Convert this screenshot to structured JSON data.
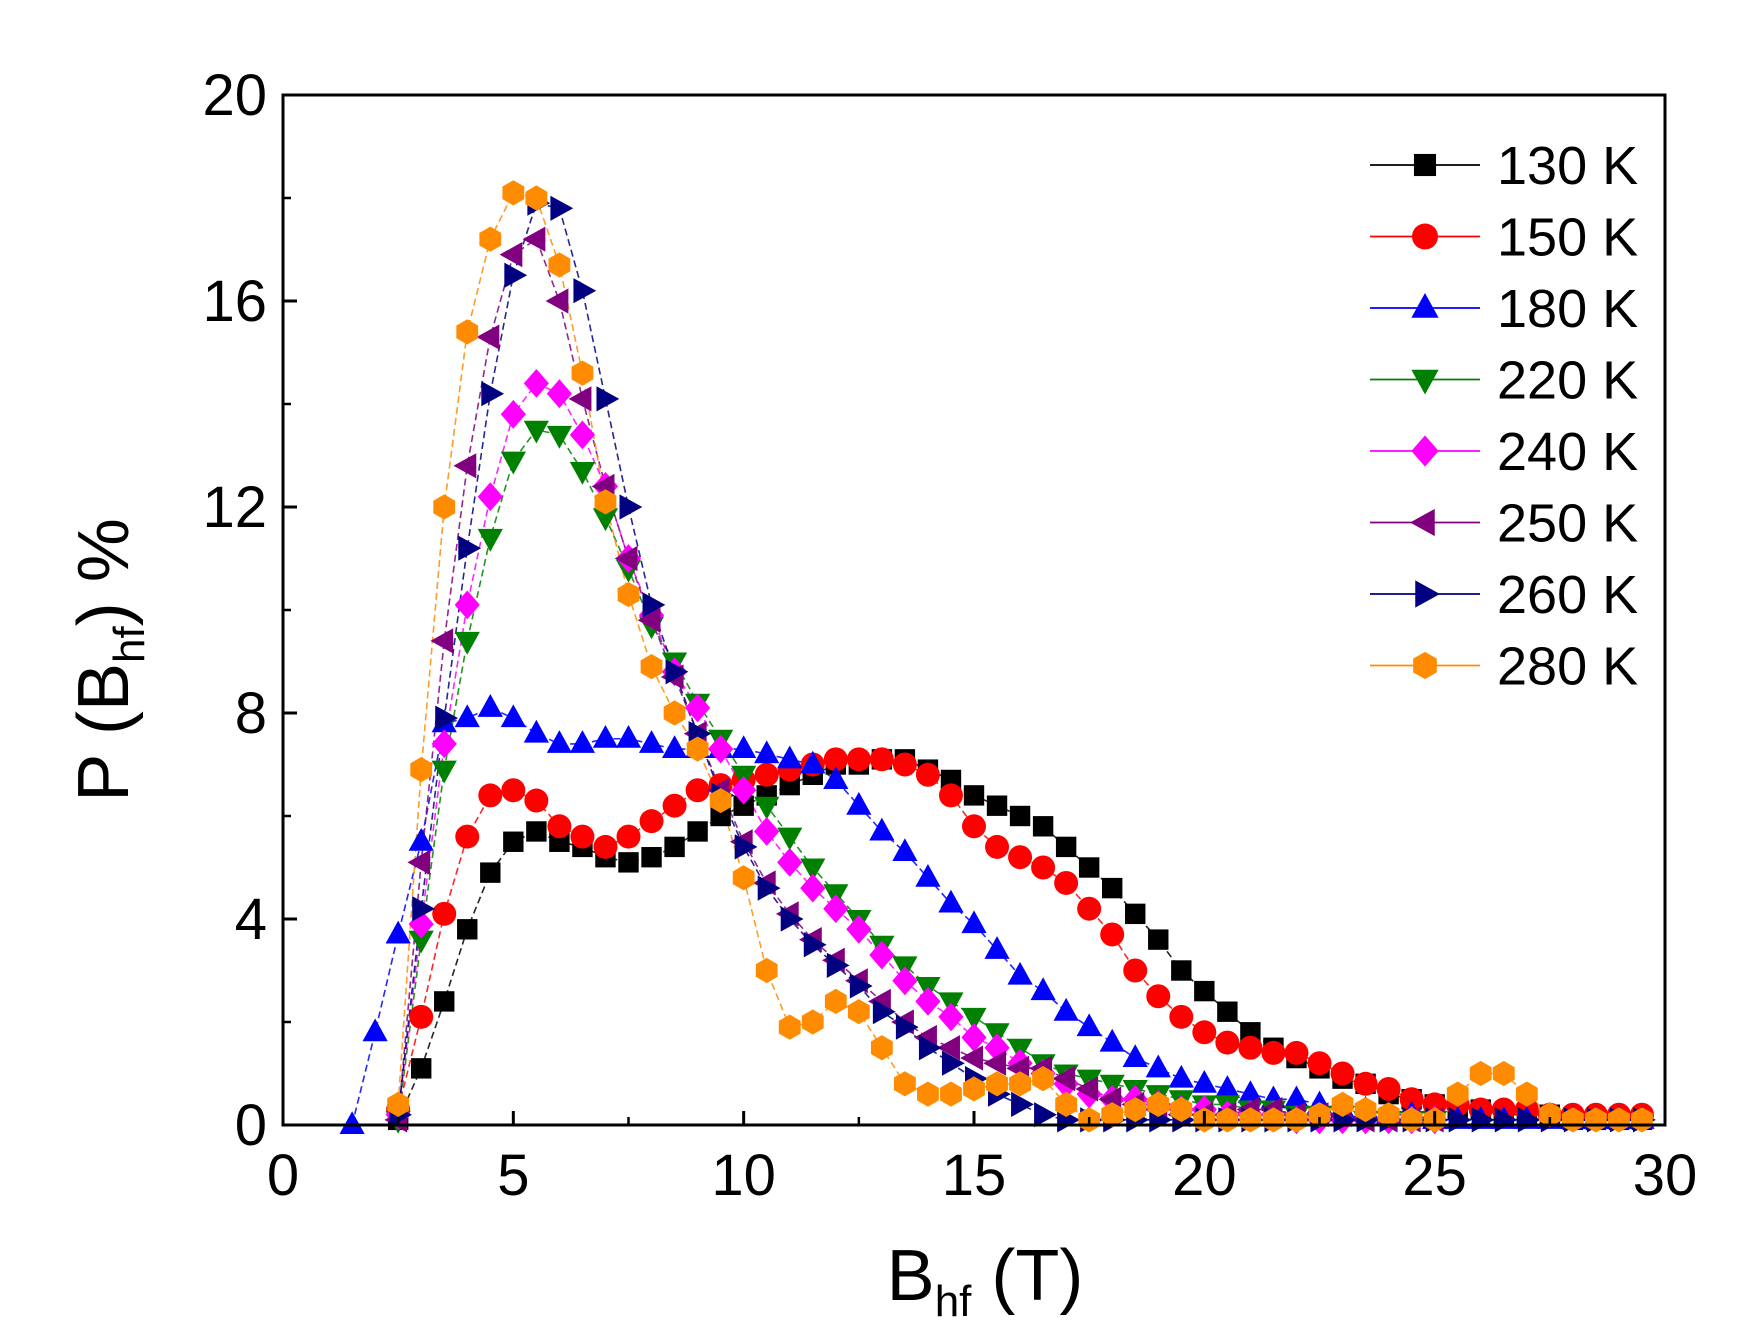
{
  "chart_data": {
    "type": "scatter",
    "title": "",
    "xlabel": "B",
    "xlabel_sub": "hf",
    "xlabel_tail": " (T)",
    "ylabel_prefix": "P (B",
    "ylabel_sub": "hf",
    "ylabel_tail": ") %",
    "xlim": [
      0,
      30
    ],
    "ylim": [
      0,
      20
    ],
    "xticks": [
      0,
      5,
      10,
      15,
      20,
      25,
      30
    ],
    "yticks": [
      0,
      4,
      8,
      12,
      16,
      20
    ],
    "x": [
      1.5,
      2.0,
      2.5,
      3.0,
      3.5,
      4.0,
      4.5,
      5.0,
      5.5,
      6.0,
      6.5,
      7.0,
      7.5,
      8.0,
      8.5,
      9.0,
      9.5,
      10.0,
      10.5,
      11.0,
      11.5,
      12.0,
      12.5,
      13.0,
      13.5,
      14.0,
      14.5,
      15.0,
      15.5,
      16.0,
      16.5,
      17.0,
      17.5,
      18.0,
      18.5,
      19.0,
      19.5,
      20.0,
      20.5,
      21.0,
      21.5,
      22.0,
      22.5,
      23.0,
      23.5,
      24.0,
      24.5,
      25.0,
      25.5,
      26.0,
      26.5,
      27.0,
      27.5,
      28.0,
      28.5,
      29.0,
      29.5
    ],
    "legend_position": "top-right",
    "series": [
      {
        "name": "130 K",
        "color": "#000000",
        "marker": "square",
        "values": [
          null,
          null,
          0.1,
          1.1,
          2.4,
          3.8,
          4.9,
          5.5,
          5.7,
          5.5,
          5.4,
          5.2,
          5.1,
          5.2,
          5.4,
          5.7,
          6.0,
          6.2,
          6.4,
          6.6,
          6.8,
          7.0,
          7.0,
          7.1,
          7.1,
          6.9,
          6.7,
          6.4,
          6.2,
          6.0,
          5.8,
          5.4,
          5.0,
          4.6,
          4.1,
          3.6,
          3.0,
          2.6,
          2.2,
          1.8,
          1.5,
          1.3,
          1.1,
          0.9,
          0.8,
          0.6,
          0.5,
          0.4,
          0.3,
          0.3,
          0.2,
          0.2,
          0.2,
          0.1,
          0.1,
          0.1,
          0.1
        ]
      },
      {
        "name": "150 K",
        "color": "#ff0000",
        "marker": "circle",
        "values": [
          null,
          null,
          0.3,
          2.1,
          4.1,
          5.6,
          6.4,
          6.5,
          6.3,
          5.8,
          5.6,
          5.4,
          5.6,
          5.9,
          6.2,
          6.5,
          6.6,
          6.7,
          6.8,
          6.9,
          7.0,
          7.1,
          7.1,
          7.1,
          7.0,
          6.8,
          6.4,
          5.8,
          5.4,
          5.2,
          5.0,
          4.7,
          4.2,
          3.7,
          3.0,
          2.5,
          2.1,
          1.8,
          1.6,
          1.5,
          1.4,
          1.4,
          1.2,
          1.0,
          0.8,
          0.7,
          0.5,
          0.4,
          0.4,
          0.3,
          0.3,
          0.3,
          0.2,
          0.2,
          0.2,
          0.2,
          0.2
        ]
      },
      {
        "name": "180 K",
        "color": "#0000ff",
        "marker": "triangle-up",
        "values": [
          0.0,
          1.8,
          3.7,
          5.5,
          7.8,
          7.9,
          8.1,
          7.9,
          7.6,
          7.4,
          7.4,
          7.5,
          7.5,
          7.4,
          7.3,
          7.3,
          7.3,
          7.3,
          7.2,
          7.1,
          7.0,
          6.7,
          6.2,
          5.7,
          5.3,
          4.8,
          4.3,
          3.9,
          3.4,
          2.9,
          2.6,
          2.2,
          1.9,
          1.6,
          1.3,
          1.1,
          0.9,
          0.8,
          0.7,
          0.6,
          0.5,
          0.5,
          0.4,
          0.3,
          0.3,
          0.2,
          0.2,
          0.1,
          0.1,
          0.1,
          0.1,
          0.1,
          0.1,
          0.1,
          0.1,
          0.1,
          0.1
        ]
      },
      {
        "name": "220 K",
        "color": "#008000",
        "marker": "triangle-down",
        "values": [
          null,
          null,
          0.1,
          3.6,
          6.9,
          9.4,
          11.4,
          12.9,
          13.5,
          13.4,
          12.7,
          11.8,
          10.8,
          9.7,
          9.0,
          8.2,
          7.5,
          6.8,
          6.2,
          5.6,
          5.0,
          4.5,
          4.0,
          3.5,
          3.1,
          2.7,
          2.4,
          2.1,
          1.8,
          1.5,
          1.2,
          1.0,
          0.9,
          0.8,
          0.7,
          0.6,
          0.5,
          0.4,
          0.4,
          0.3,
          0.3,
          0.2,
          0.2,
          0.2,
          0.1,
          0.1,
          0.1,
          0.1,
          null,
          null,
          null,
          null,
          null,
          null,
          null,
          null,
          null
        ]
      },
      {
        "name": "240 K",
        "color": "#ff00ff",
        "marker": "diamond",
        "values": [
          null,
          null,
          0.2,
          3.9,
          7.4,
          10.1,
          12.2,
          13.8,
          14.4,
          14.2,
          13.4,
          12.4,
          11.0,
          9.9,
          8.8,
          8.1,
          7.3,
          6.5,
          5.7,
          5.1,
          4.6,
          4.2,
          3.8,
          3.3,
          2.8,
          2.4,
          2.1,
          1.7,
          1.5,
          1.2,
          1.0,
          0.8,
          0.6,
          0.5,
          0.5,
          0.4,
          0.3,
          0.3,
          0.2,
          0.2,
          0.2,
          0.1,
          0.1,
          0.1,
          0.1,
          0.1,
          0.1,
          0.1,
          null,
          null,
          null,
          null,
          null,
          null,
          null,
          null,
          null
        ]
      },
      {
        "name": "250 K",
        "color": "#800080",
        "marker": "triangle-left",
        "values": [
          null,
          null,
          0.1,
          5.1,
          9.4,
          12.8,
          15.3,
          16.9,
          17.2,
          16.0,
          14.1,
          12.4,
          11.0,
          9.8,
          8.7,
          7.6,
          6.5,
          5.5,
          4.7,
          4.1,
          3.6,
          3.2,
          2.8,
          2.4,
          2.0,
          1.7,
          1.5,
          1.3,
          1.2,
          1.1,
          1.1,
          0.9,
          0.7,
          0.5,
          0.4,
          0.3,
          0.2,
          0.2,
          0.2,
          0.3,
          0.3,
          0.2,
          0.2,
          0.2,
          0.1,
          0.1,
          0.1,
          0.1,
          null,
          null,
          null,
          null,
          null,
          null,
          null,
          null,
          null
        ]
      },
      {
        "name": "260 K",
        "color": "#000080",
        "marker": "triangle-right",
        "values": [
          null,
          null,
          0.2,
          4.2,
          7.9,
          11.2,
          14.2,
          16.5,
          17.9,
          17.8,
          16.2,
          14.1,
          12.0,
          10.1,
          8.8,
          7.6,
          6.4,
          5.4,
          4.6,
          4.0,
          3.5,
          3.1,
          2.7,
          2.2,
          1.9,
          1.5,
          1.2,
          0.9,
          0.6,
          0.4,
          0.2,
          0.1,
          0.1,
          0.1,
          0.1,
          0.1,
          0.1,
          0.1,
          0.1,
          0.1,
          0.1,
          0.1,
          0.1,
          0.1,
          0.1,
          0.1,
          0.1,
          0.1,
          0.1,
          0.1,
          0.1,
          0.1,
          0.1,
          0.1,
          0.1,
          0.1,
          0.1
        ]
      },
      {
        "name": "280 K",
        "color": "#ff8c00",
        "marker": "hexagon",
        "values": [
          null,
          null,
          0.4,
          6.9,
          12.0,
          15.4,
          17.2,
          18.1,
          18.0,
          16.7,
          14.6,
          12.1,
          10.3,
          8.9,
          8.0,
          7.3,
          6.3,
          4.8,
          3.0,
          1.9,
          2.0,
          2.4,
          2.2,
          1.5,
          0.8,
          0.6,
          0.6,
          0.7,
          0.8,
          0.8,
          0.9,
          0.4,
          0.1,
          0.2,
          0.3,
          0.4,
          0.3,
          0.1,
          0.1,
          0.1,
          0.1,
          0.1,
          0.2,
          0.4,
          0.3,
          0.2,
          0.1,
          0.1,
          0.6,
          1.0,
          1.0,
          0.6,
          0.2,
          0.1,
          0.1,
          0.1,
          0.1
        ]
      }
    ]
  }
}
